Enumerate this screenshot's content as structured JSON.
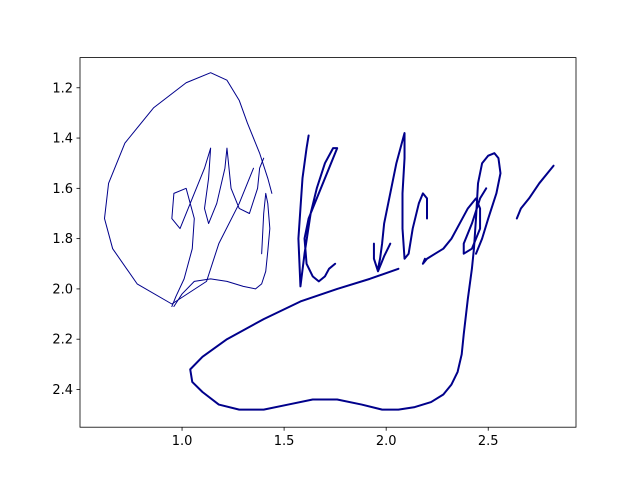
{
  "chart_data": {
    "type": "line",
    "title": "",
    "xlabel": "",
    "ylabel": "",
    "xlim": [
      0.5,
      2.93
    ],
    "ylim": [
      2.55,
      1.08
    ],
    "y_inverted": true,
    "grid": false,
    "line_color": "#00008b",
    "x_ticks": [
      1.0,
      1.5,
      2.0,
      2.5
    ],
    "x_tick_labels": [
      "1.0",
      "1.5",
      "2.0",
      "2.5"
    ],
    "y_ticks": [
      1.2,
      1.4,
      1.6,
      1.8,
      2.0,
      2.2,
      2.4
    ],
    "y_tick_labels": [
      "1.2",
      "1.4",
      "1.6",
      "1.8",
      "2.0",
      "2.2",
      "2.4"
    ],
    "series": [
      {
        "stroke": "thin",
        "x": [
          1.35,
          1.28,
          1.18,
          1.12,
          0.95,
          0.78,
          0.66,
          0.62,
          0.64,
          0.72,
          0.86,
          1.02,
          1.14,
          1.22,
          1.28,
          1.32,
          1.38,
          1.42,
          1.44
        ],
        "y": [
          1.52,
          1.66,
          1.82,
          1.97,
          2.06,
          1.98,
          1.84,
          1.72,
          1.58,
          1.42,
          1.28,
          1.18,
          1.14,
          1.17,
          1.25,
          1.34,
          1.46,
          1.56,
          1.62
        ]
      },
      {
        "stroke": "thin",
        "x": [
          0.95,
          0.97,
          1.01,
          1.05,
          1.06,
          1.02,
          0.96,
          0.95,
          0.99,
          1.04,
          1.08,
          1.11,
          1.14,
          1.13,
          1.11,
          1.13,
          1.17,
          1.21,
          1.22,
          1.24,
          1.28,
          1.33,
          1.37,
          1.38,
          1.4
        ],
        "y": [
          2.07,
          2.03,
          1.96,
          1.84,
          1.72,
          1.6,
          1.62,
          1.72,
          1.76,
          1.66,
          1.58,
          1.52,
          1.44,
          1.56,
          1.68,
          1.74,
          1.66,
          1.52,
          1.44,
          1.6,
          1.68,
          1.7,
          1.6,
          1.52,
          1.48
        ]
      },
      {
        "stroke": "thin",
        "x": [
          0.96,
          1.0,
          1.06,
          1.14,
          1.22,
          1.3,
          1.36,
          1.39,
          1.41,
          1.42,
          1.43,
          1.42,
          1.41,
          1.4,
          1.39
        ],
        "y": [
          2.07,
          2.02,
          1.97,
          1.96,
          1.97,
          1.99,
          2.0,
          1.98,
          1.93,
          1.85,
          1.76,
          1.66,
          1.62,
          1.7,
          1.86
        ]
      },
      {
        "stroke": "thick",
        "x": [
          1.62,
          1.61,
          1.59,
          1.58,
          1.57,
          1.58,
          1.6,
          1.63,
          1.66,
          1.7,
          1.74,
          1.76,
          1.72,
          1.66,
          1.62,
          1.6,
          1.61,
          1.64,
          1.67,
          1.7,
          1.72,
          1.75
        ],
        "y": [
          1.39,
          1.44,
          1.56,
          1.68,
          1.8,
          1.99,
          1.86,
          1.7,
          1.6,
          1.5,
          1.44,
          1.44,
          1.52,
          1.64,
          1.72,
          1.8,
          1.9,
          1.95,
          1.97,
          1.95,
          1.92,
          1.9
        ]
      },
      {
        "stroke": "thick",
        "x": [
          1.96,
          1.97,
          1.98,
          1.99,
          2.01,
          2.03,
          2.05,
          2.07,
          2.09,
          2.09,
          2.08,
          2.08,
          2.09,
          2.11,
          2.13,
          2.16,
          2.18,
          2.2,
          2.2
        ],
        "y": [
          1.92,
          1.88,
          1.82,
          1.74,
          1.66,
          1.58,
          1.5,
          1.44,
          1.38,
          1.48,
          1.62,
          1.76,
          1.88,
          1.86,
          1.76,
          1.66,
          1.62,
          1.64,
          1.72
        ]
      },
      {
        "stroke": "thick",
        "x": [
          1.94,
          1.94,
          1.96,
          1.99,
          2.02
        ],
        "y": [
          1.82,
          1.88,
          1.93,
          1.87,
          1.82
        ]
      },
      {
        "stroke": "thick",
        "x": [
          2.19,
          2.18,
          2.2,
          2.24,
          2.28,
          2.32,
          2.36,
          2.4,
          2.44,
          2.46,
          2.46,
          2.42,
          2.38,
          2.38,
          2.42,
          2.46,
          2.49
        ],
        "y": [
          1.88,
          1.9,
          1.88,
          1.86,
          1.84,
          1.8,
          1.74,
          1.68,
          1.64,
          1.68,
          1.76,
          1.84,
          1.86,
          1.82,
          1.74,
          1.64,
          1.6
        ]
      },
      {
        "stroke": "thick",
        "x": [
          2.06,
          1.92,
          1.76,
          1.58,
          1.4,
          1.22,
          1.1,
          1.04,
          1.05,
          1.1,
          1.18,
          1.28,
          1.4,
          1.52,
          1.64,
          1.76,
          1.88,
          1.98,
          2.06,
          2.14,
          2.22,
          2.28,
          2.32,
          2.35,
          2.37,
          2.38,
          2.4,
          2.42,
          2.43,
          2.44,
          2.45,
          2.47,
          2.5,
          2.53,
          2.55,
          2.56,
          2.54,
          2.5,
          2.47,
          2.44
        ],
        "y": [
          1.92,
          1.96,
          2.0,
          2.05,
          2.12,
          2.2,
          2.27,
          2.32,
          2.37,
          2.41,
          2.46,
          2.48,
          2.48,
          2.46,
          2.44,
          2.44,
          2.46,
          2.48,
          2.48,
          2.47,
          2.45,
          2.42,
          2.38,
          2.33,
          2.26,
          2.18,
          2.04,
          1.92,
          1.84,
          1.72,
          1.58,
          1.5,
          1.47,
          1.46,
          1.48,
          1.54,
          1.62,
          1.72,
          1.8,
          1.86
        ]
      },
      {
        "stroke": "thick",
        "x": [
          2.65,
          2.64,
          2.66,
          2.7,
          2.75,
          2.8,
          2.82
        ],
        "y": [
          1.7,
          1.72,
          1.68,
          1.64,
          1.58,
          1.53,
          1.51
        ]
      }
    ]
  }
}
